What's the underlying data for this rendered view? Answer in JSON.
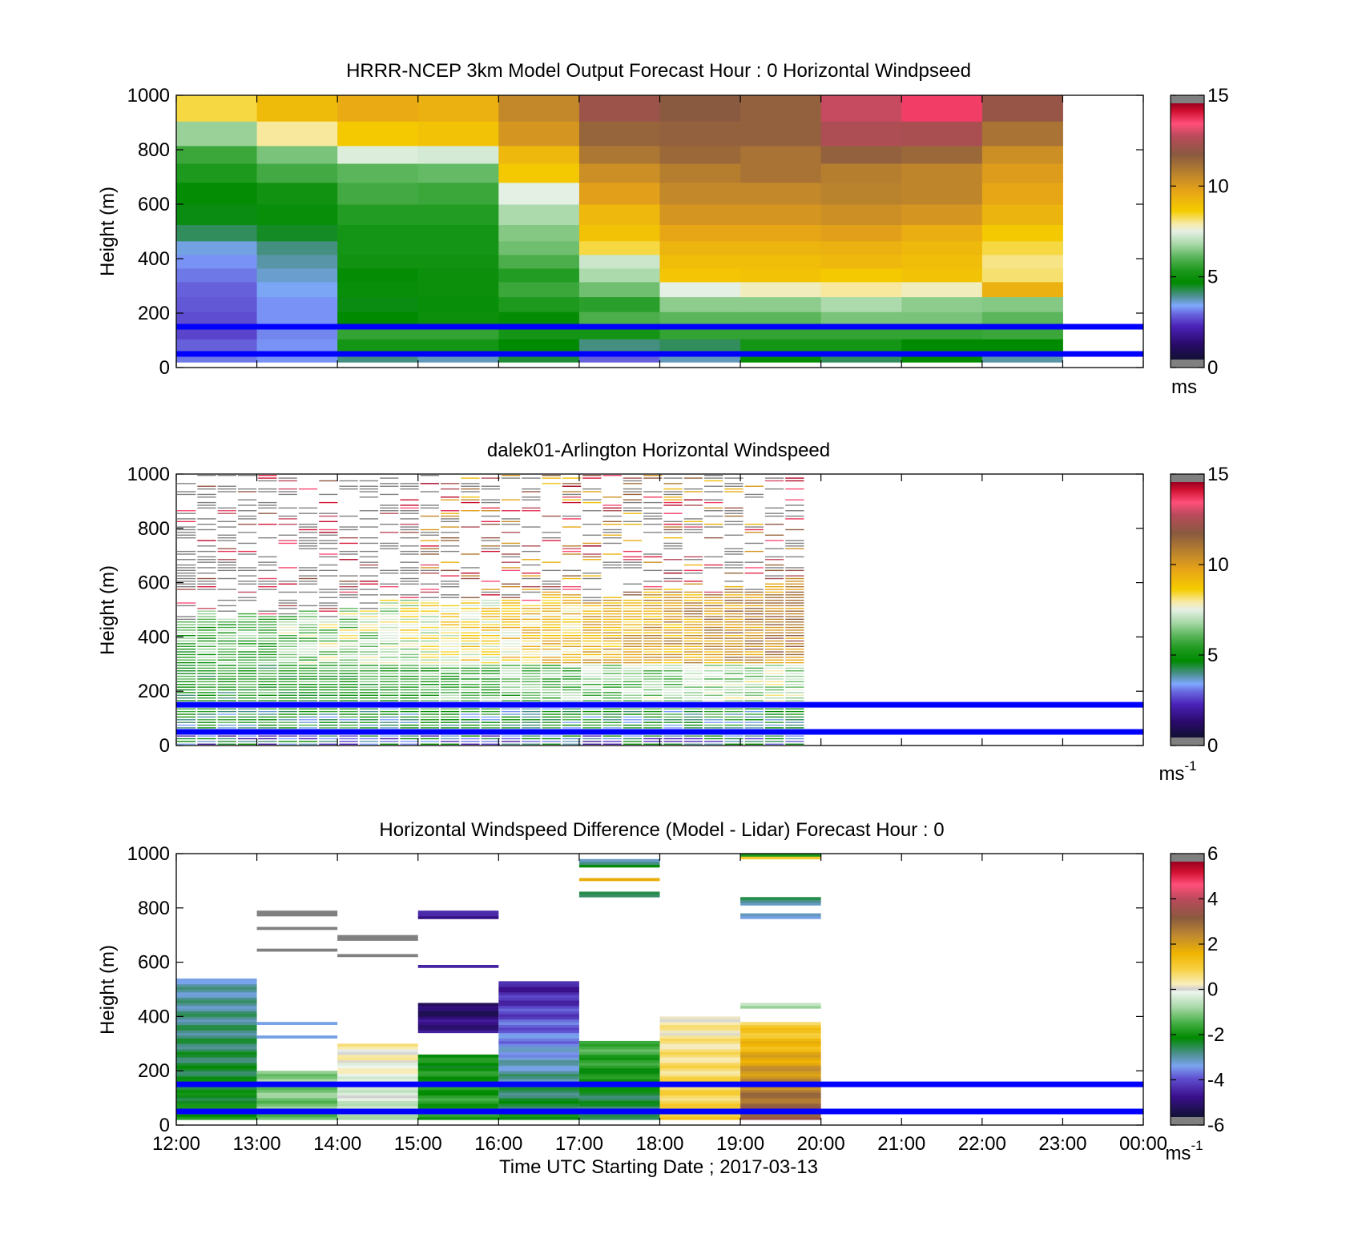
{
  "figure": {
    "xlabel": "Time UTC  Starting Date ; 2017-03-13",
    "x_tick_labels": [
      "12:00",
      "13:00",
      "14:00",
      "15:00",
      "16:00",
      "17:00",
      "18:00",
      "19:00",
      "20:00",
      "21:00",
      "22:00",
      "23:00",
      "00:00"
    ],
    "reference_line_color": "#0000ff",
    "reference_line_heights_m": [
      150,
      50
    ]
  },
  "chart_data": [
    {
      "type": "heatmap",
      "title": "HRRR-NCEP 3km Model Output   Forecast Hour : 0 Horizontal Windpseed",
      "ylabel": "Height (m)",
      "ylim": [
        0,
        1000
      ],
      "yticks": [
        "0",
        "200",
        "400",
        "600",
        "800",
        "1000"
      ],
      "x_range_hours": [
        12,
        24
      ],
      "colorbar": {
        "range": [
          0,
          15
        ],
        "ticks": [
          "0",
          "5",
          "10",
          "15"
        ],
        "unit": "ms"
      },
      "column_times_h": [
        12,
        13,
        14,
        15,
        16,
        17,
        18,
        19,
        20,
        21,
        22
      ],
      "row_heights_m": [
        30,
        80,
        130,
        180,
        230,
        290,
        340,
        390,
        440,
        490,
        560,
        640,
        720,
        780,
        850,
        960
      ],
      "values_ms": [
        [
          2.8,
          3.0,
          3.8,
          3.5,
          4.2,
          2.6,
          3.5,
          4.6,
          4.0,
          4.5,
          3.6
        ],
        [
          2.6,
          3.0,
          5.0,
          5.0,
          4.5,
          3.8,
          4.0,
          5.0,
          5.0,
          4.5,
          4.5
        ],
        [
          2.3,
          2.9,
          5.5,
          5.5,
          5.0,
          5.0,
          5.5,
          5.5,
          5.5,
          5.5,
          5.6
        ],
        [
          2.4,
          3.0,
          4.5,
          4.8,
          4.6,
          5.8,
          6.0,
          6.0,
          6.3,
          6.3,
          6.0
        ],
        [
          2.5,
          3.0,
          4.4,
          4.7,
          5.2,
          5.4,
          6.5,
          6.5,
          6.8,
          6.5,
          6.4
        ],
        [
          2.6,
          3.2,
          4.7,
          4.8,
          5.6,
          6.2,
          7.5,
          7.8,
          8.0,
          7.8,
          9.5
        ],
        [
          2.8,
          3.4,
          4.6,
          4.8,
          5.3,
          6.8,
          8.9,
          9.0,
          8.8,
          9.0,
          8.2
        ],
        [
          3.0,
          3.6,
          4.9,
          4.9,
          5.8,
          7.2,
          9.1,
          9.1,
          9.3,
          9.1,
          8.1
        ],
        [
          3.3,
          3.8,
          5.0,
          5.0,
          6.2,
          8.4,
          9.4,
          9.4,
          9.5,
          9.3,
          8.4
        ],
        [
          4.0,
          4.3,
          5.0,
          5.0,
          6.4,
          9.0,
          9.8,
          9.8,
          10.0,
          9.6,
          8.8
        ],
        [
          4.4,
          4.7,
          5.3,
          5.3,
          6.8,
          9.3,
          10.3,
          10.3,
          10.5,
          10.3,
          9.4
        ],
        [
          4.6,
          4.9,
          5.7,
          5.6,
          7.5,
          10.0,
          10.7,
          10.7,
          10.9,
          10.8,
          9.8
        ],
        [
          5.2,
          5.7,
          6.0,
          6.1,
          8.8,
          10.5,
          11.0,
          11.3,
          11.0,
          10.8,
          10.1
        ],
        [
          5.6,
          6.3,
          7.4,
          7.3,
          9.3,
          11.2,
          11.6,
          11.3,
          11.8,
          11.6,
          10.5
        ],
        [
          6.6,
          8.0,
          8.8,
          9.0,
          10.3,
          11.7,
          11.8,
          11.8,
          12.8,
          12.7,
          11.3
        ],
        [
          8.4,
          9.2,
          9.7,
          9.5,
          10.7,
          12.4,
          12.0,
          11.8,
          13.2,
          14.0,
          12.3
        ]
      ]
    },
    {
      "type": "heatmap",
      "title": "dalek01-Arlington  Horizontal Windspeed",
      "ylabel": "Height (m)",
      "ylim": [
        0,
        1000
      ],
      "yticks": [
        "0",
        "200",
        "400",
        "600",
        "800",
        "1000"
      ],
      "x_range_hours": [
        12,
        24
      ],
      "colorbar": {
        "range": [
          0,
          15
        ],
        "ticks": [
          "0",
          "5",
          "10",
          "15"
        ],
        "unit": "ms",
        "unit_sup": "-1"
      },
      "data_extent_hours": [
        12,
        19.8
      ]
    },
    {
      "type": "heatmap",
      "title": "Horizontal Windspeed Difference (Model - Lidar) Forecast Hour : 0",
      "ylabel": "Height (m)",
      "ylim": [
        0,
        1000
      ],
      "yticks": [
        "0",
        "200",
        "400",
        "600",
        "800",
        "1000"
      ],
      "x_range_hours": [
        12,
        24
      ],
      "colorbar": {
        "range": [
          -6,
          6
        ],
        "ticks": [
          "-6",
          "-4",
          "-2",
          "0",
          "2",
          "4",
          "6"
        ],
        "unit": "ms",
        "unit_sup": "-1"
      },
      "column_profiles": [
        {
          "t": 12,
          "bands": [
            [
              20,
              540,
              -2.2,
              -3.3
            ]
          ]
        },
        {
          "t": 13,
          "bands": [
            [
              20,
              200,
              -1.3,
              -1.0
            ],
            [
              320,
              330,
              -3.2,
              -3.2
            ],
            [
              370,
              380,
              -3.2,
              -3.2
            ],
            [
              640,
              650,
              7,
              7
            ],
            [
              720,
              730,
              7,
              7
            ],
            [
              770,
              790,
              7,
              7
            ]
          ]
        },
        {
          "t": 14,
          "bands": [
            [
              20,
              300,
              -0.6,
              0.3
            ],
            [
              620,
              630,
              7,
              7
            ],
            [
              680,
              700,
              7,
              7
            ]
          ]
        },
        {
          "t": 15,
          "bands": [
            [
              20,
              260,
              -1.8,
              -2.2
            ],
            [
              340,
              450,
              -5.0,
              -5.6
            ],
            [
              580,
              590,
              -5.0,
              -5.0
            ],
            [
              760,
              790,
              -5.4,
              -4.6
            ]
          ]
        },
        {
          "t": 16,
          "bands": [
            [
              20,
              530,
              -2.3,
              -4.9
            ]
          ]
        },
        {
          "t": 17,
          "bands": [
            [
              20,
              310,
              -3.0,
              -1.5
            ],
            [
              840,
              860,
              -3.0,
              -3.0
            ],
            [
              900,
              910,
              1.5,
              1.5
            ],
            [
              950,
              980,
              -2.6,
              -3.0
            ]
          ]
        },
        {
          "t": 18,
          "bands": [
            [
              20,
              400,
              1.0,
              0.3
            ]
          ]
        },
        {
          "t": 19,
          "bands": [
            [
              20,
              380,
              3.5,
              1.0
            ],
            [
              430,
              450,
              -0.8,
              -0.8
            ],
            [
              760,
              780,
              -3.2,
              -3.2
            ],
            [
              810,
              840,
              -3.0,
              -3.0
            ],
            [
              980,
              1000,
              0.8,
              -2.0
            ]
          ]
        }
      ]
    }
  ]
}
